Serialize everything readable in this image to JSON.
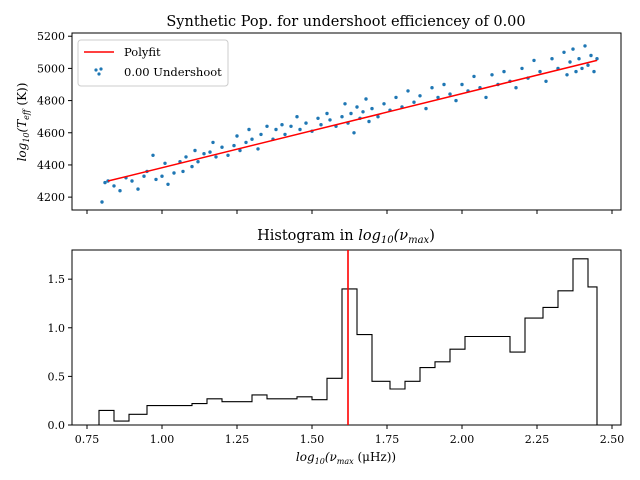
{
  "chart_data": [
    {
      "type": "scatter",
      "title": "Synthetic Pop. for undershoot efficiencey of 0.00",
      "ylabel": "log10(Teff (K))",
      "ylabel_parts": {
        "pre": "log",
        "sub1": "10",
        "mid": "(T",
        "sub2": "eff",
        "post": " (K))"
      },
      "xlim": [
        0.7,
        2.53
      ],
      "ylim": [
        4120,
        5220
      ],
      "yticks": [
        4200,
        4400,
        4600,
        4800,
        5000,
        5200
      ],
      "xticks": [
        0.75,
        1.0,
        1.25,
        1.5,
        1.75,
        2.0,
        2.25,
        2.5
      ],
      "x_tick_labels_shown": false,
      "grid": false,
      "legend": {
        "position": "top-left",
        "entries": [
          {
            "label": "Polyfit",
            "kind": "line",
            "color": "#ff0000"
          },
          {
            "label": "0.00 Undershoot",
            "kind": "scatter",
            "color": "#1f77b4"
          }
        ]
      },
      "series": [
        {
          "name": "0.00 Undershoot",
          "color": "#1f77b4",
          "points": [
            [
              0.8,
              4170
            ],
            [
              0.81,
              4290
            ],
            [
              0.82,
              4300
            ],
            [
              0.84,
              4270
            ],
            [
              0.86,
              4240
            ],
            [
              0.88,
              4320
            ],
            [
              0.9,
              4300
            ],
            [
              0.92,
              4250
            ],
            [
              0.94,
              4330
            ],
            [
              0.95,
              4360
            ],
            [
              0.97,
              4460
            ],
            [
              0.98,
              4310
            ],
            [
              1.0,
              4330
            ],
            [
              1.01,
              4410
            ],
            [
              1.02,
              4280
            ],
            [
              1.04,
              4350
            ],
            [
              1.06,
              4420
            ],
            [
              1.07,
              4360
            ],
            [
              1.08,
              4450
            ],
            [
              1.1,
              4390
            ],
            [
              1.11,
              4490
            ],
            [
              1.12,
              4420
            ],
            [
              1.14,
              4470
            ],
            [
              1.16,
              4480
            ],
            [
              1.17,
              4540
            ],
            [
              1.18,
              4450
            ],
            [
              1.2,
              4510
            ],
            [
              1.22,
              4460
            ],
            [
              1.24,
              4520
            ],
            [
              1.25,
              4580
            ],
            [
              1.26,
              4490
            ],
            [
              1.28,
              4540
            ],
            [
              1.29,
              4620
            ],
            [
              1.3,
              4560
            ],
            [
              1.32,
              4500
            ],
            [
              1.33,
              4590
            ],
            [
              1.35,
              4640
            ],
            [
              1.37,
              4560
            ],
            [
              1.38,
              4620
            ],
            [
              1.4,
              4650
            ],
            [
              1.41,
              4590
            ],
            [
              1.43,
              4640
            ],
            [
              1.45,
              4700
            ],
            [
              1.46,
              4620
            ],
            [
              1.48,
              4660
            ],
            [
              1.5,
              4610
            ],
            [
              1.52,
              4690
            ],
            [
              1.53,
              4650
            ],
            [
              1.55,
              4720
            ],
            [
              1.56,
              4680
            ],
            [
              1.58,
              4640
            ],
            [
              1.6,
              4700
            ],
            [
              1.61,
              4780
            ],
            [
              1.62,
              4660
            ],
            [
              1.63,
              4720
            ],
            [
              1.64,
              4600
            ],
            [
              1.65,
              4760
            ],
            [
              1.66,
              4690
            ],
            [
              1.67,
              4730
            ],
            [
              1.68,
              4810
            ],
            [
              1.69,
              4670
            ],
            [
              1.7,
              4750
            ],
            [
              1.72,
              4700
            ],
            [
              1.74,
              4780
            ],
            [
              1.76,
              4740
            ],
            [
              1.78,
              4820
            ],
            [
              1.8,
              4760
            ],
            [
              1.82,
              4860
            ],
            [
              1.84,
              4790
            ],
            [
              1.86,
              4830
            ],
            [
              1.88,
              4750
            ],
            [
              1.9,
              4880
            ],
            [
              1.92,
              4820
            ],
            [
              1.94,
              4900
            ],
            [
              1.96,
              4840
            ],
            [
              1.98,
              4800
            ],
            [
              2.0,
              4900
            ],
            [
              2.02,
              4860
            ],
            [
              2.04,
              4950
            ],
            [
              2.06,
              4880
            ],
            [
              2.08,
              4820
            ],
            [
              2.1,
              4960
            ],
            [
              2.12,
              4900
            ],
            [
              2.14,
              4980
            ],
            [
              2.16,
              4920
            ],
            [
              2.18,
              4880
            ],
            [
              2.2,
              5000
            ],
            [
              2.22,
              4940
            ],
            [
              2.24,
              5050
            ],
            [
              2.26,
              4980
            ],
            [
              2.28,
              4920
            ],
            [
              2.3,
              5060
            ],
            [
              2.32,
              5000
            ],
            [
              2.34,
              5100
            ],
            [
              2.35,
              4960
            ],
            [
              2.36,
              5040
            ],
            [
              2.37,
              5120
            ],
            [
              2.38,
              4980
            ],
            [
              2.39,
              5060
            ],
            [
              2.4,
              5000
            ],
            [
              2.41,
              5140
            ],
            [
              2.42,
              5020
            ],
            [
              2.43,
              5080
            ],
            [
              2.44,
              4980
            ],
            [
              2.45,
              5060
            ]
          ]
        },
        {
          "name": "Polyfit",
          "color": "#ff0000",
          "points": [
            [
              0.82,
              4300
            ],
            [
              2.45,
              5050
            ]
          ]
        }
      ]
    },
    {
      "type": "histogram",
      "title": "Histogram in log10(νmax)",
      "title_parts": {
        "pre": "Histogram in ",
        "italic": "log",
        "sub1": "10",
        "mid": "(ν",
        "sub2": "max",
        "post": ")"
      },
      "xlabel": "log10(νmax (μHz))",
      "xlabel_parts": {
        "pre": "log",
        "sub1": "10",
        "mid": "(ν",
        "sub2": "max",
        "post": " (μHz))"
      },
      "xlim": [
        0.7,
        2.53
      ],
      "ylim": [
        0.0,
        1.8
      ],
      "xticks": [
        0.75,
        1.0,
        1.25,
        1.5,
        1.75,
        2.0,
        2.25,
        2.5
      ],
      "xtick_labels": [
        "0.75",
        "1.00",
        "1.25",
        "1.50",
        "1.75",
        "2.00",
        "2.25",
        "2.50"
      ],
      "yticks": [
        0.0,
        0.5,
        1.0,
        1.5
      ],
      "ytick_labels": [
        "0.0",
        "0.5",
        "1.0",
        "1.5"
      ],
      "grid": false,
      "vline": {
        "x": 1.62,
        "color": "#ff0000"
      },
      "bin_edges": [
        0.79,
        0.84,
        0.89,
        0.95,
        1.0,
        1.05,
        1.1,
        1.15,
        1.2,
        1.25,
        1.3,
        1.35,
        1.4,
        1.45,
        1.5,
        1.55,
        1.6,
        1.65,
        1.7,
        1.76,
        1.81,
        1.86,
        1.91,
        1.96,
        2.01,
        2.06,
        2.11,
        2.16,
        2.21,
        2.27,
        2.32,
        2.37,
        2.42,
        2.45
      ],
      "counts": [
        0.15,
        0.04,
        0.11,
        0.2,
        0.2,
        0.2,
        0.22,
        0.27,
        0.24,
        0.24,
        0.31,
        0.27,
        0.27,
        0.29,
        0.26,
        0.48,
        1.4,
        0.93,
        0.45,
        0.37,
        0.45,
        0.59,
        0.65,
        0.78,
        0.91,
        0.91,
        0.91,
        0.75,
        1.1,
        1.21,
        1.38,
        1.71,
        1.42
      ]
    }
  ]
}
